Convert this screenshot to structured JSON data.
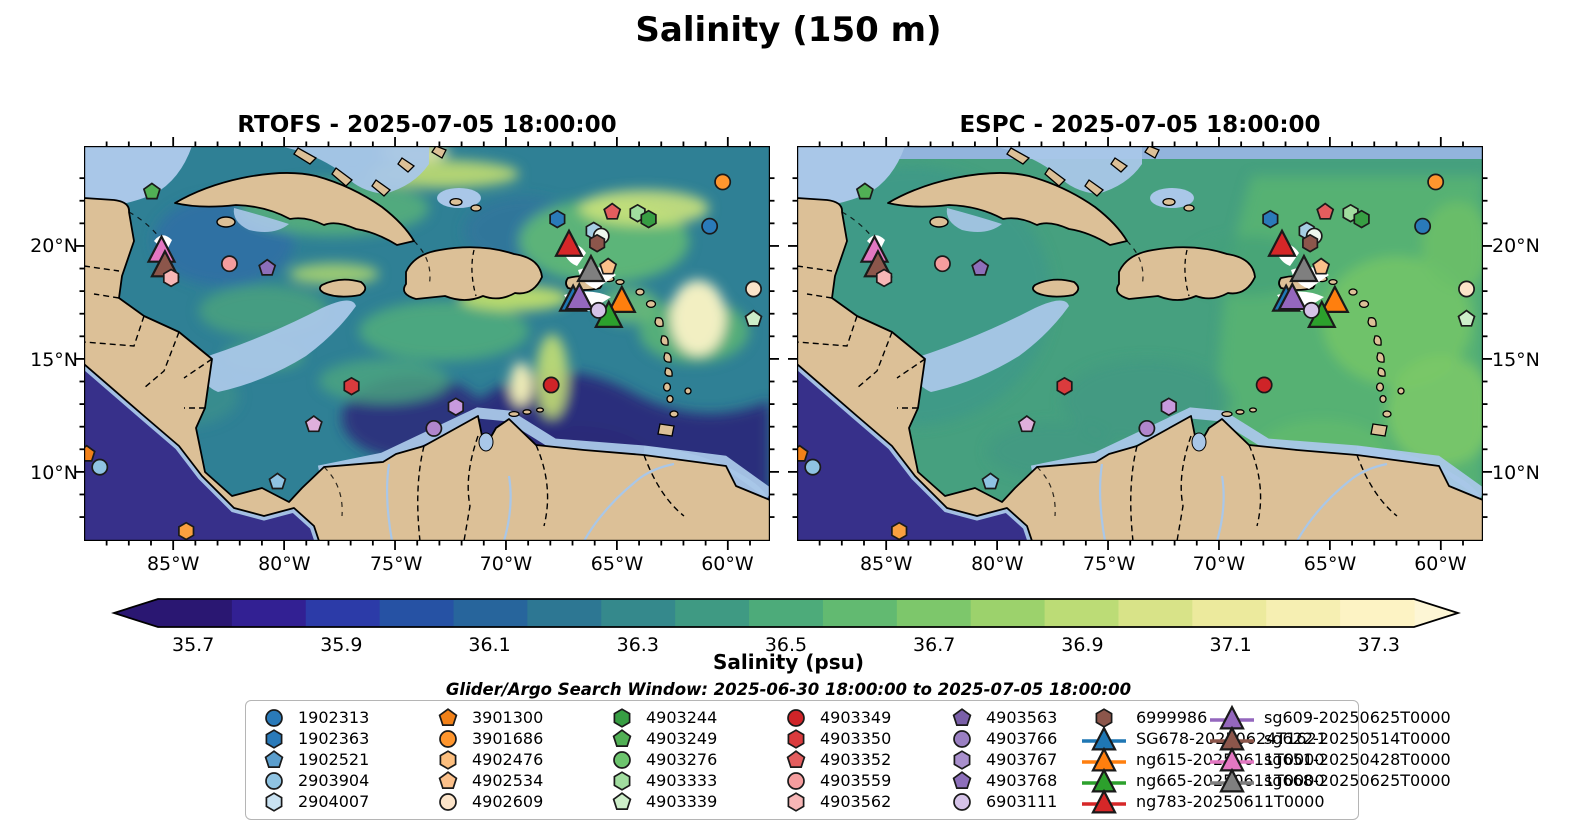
{
  "title": "Salinity (150 m)",
  "subtitle": "Glider/Argo Search Window: 2025-06-30 18:00:00 to 2025-07-05 18:00:00",
  "panels": [
    {
      "model": "RTOFS",
      "title": "RTOFS - 2025-07-05 18:00:00"
    },
    {
      "model": "ESPC",
      "title": "ESPC - 2025-07-05 18:00:00"
    }
  ],
  "axes": {
    "lon_ticks": [
      "85°W",
      "80°W",
      "75°W",
      "70°W",
      "65°W",
      "60°W"
    ],
    "lat_ticks": [
      "20°N",
      "15°N",
      "10°N"
    ]
  },
  "colorbar": {
    "label": "Salinity (psu)",
    "ticks": [
      "35.7",
      "35.9",
      "36.1",
      "36.3",
      "36.5",
      "36.7",
      "36.9",
      "37.1",
      "37.3"
    ],
    "segment_colors": [
      "#2a1772",
      "#322093",
      "#2c3ba8",
      "#2652a4",
      "#27659c",
      "#2d7793",
      "#35898c",
      "#3f9a83",
      "#4dab7a",
      "#62ba71",
      "#7dc76b",
      "#9cd26c",
      "#bcdc76",
      "#d8e388",
      "#ecea9d",
      "#f6efb2",
      "#fdf3c4"
    ],
    "under_color": "#2a1772",
    "over_color": "#fdf6d5"
  },
  "legend": {
    "argo_columns": [
      [
        {
          "id": "1902313",
          "shape": "circle",
          "color": "#2a7ab9"
        },
        {
          "id": "1902363",
          "shape": "hexagon",
          "color": "#2a7ab9"
        },
        {
          "id": "1902521",
          "shape": "pentagon",
          "color": "#5b9ecd"
        },
        {
          "id": "2903904",
          "shape": "circle",
          "color": "#8fc3e2"
        },
        {
          "id": "2904007",
          "shape": "hexagon",
          "color": "#c9e2f2"
        }
      ],
      [
        {
          "id": "3901300",
          "shape": "pentagon",
          "color": "#f28118"
        },
        {
          "id": "3901686",
          "shape": "circle",
          "color": "#ff962e"
        },
        {
          "id": "4902476",
          "shape": "hexagon",
          "color": "#fcbe7e"
        },
        {
          "id": "4902534",
          "shape": "pentagon",
          "color": "#fbc08a"
        },
        {
          "id": "4902609",
          "shape": "circle",
          "color": "#fce4c9"
        }
      ],
      [
        {
          "id": "4903244",
          "shape": "hexagon",
          "color": "#379e43"
        },
        {
          "id": "4903249",
          "shape": "pentagon",
          "color": "#51b055"
        },
        {
          "id": "4903276",
          "shape": "circle",
          "color": "#6cc46d"
        },
        {
          "id": "4903333",
          "shape": "hexagon",
          "color": "#a1dd9f"
        },
        {
          "id": "4903339",
          "shape": "pentagon",
          "color": "#cdeec9"
        }
      ],
      [
        {
          "id": "4903349",
          "shape": "circle",
          "color": "#cf2428"
        },
        {
          "id": "4903350",
          "shape": "hexagon",
          "color": "#da3b3d"
        },
        {
          "id": "4903352",
          "shape": "pentagon",
          "color": "#e35d5e"
        },
        {
          "id": "4903559",
          "shape": "circle",
          "color": "#f59d9e"
        },
        {
          "id": "4903562",
          "shape": "hexagon",
          "color": "#f7b6b6"
        }
      ],
      [
        {
          "id": "4903563",
          "shape": "pentagon",
          "color": "#7a5fa8"
        },
        {
          "id": "4903766",
          "shape": "circle",
          "color": "#9a7fc2"
        },
        {
          "id": "4903767",
          "shape": "hexagon",
          "color": "#a98fcd"
        },
        {
          "id": "4903768",
          "shape": "pentagon",
          "color": "#8d6fba"
        },
        {
          "id": "6903111",
          "shape": "circle",
          "color": "#d5c3e8"
        }
      ]
    ],
    "col6": [
      {
        "id": "6999986",
        "type": "argo",
        "shape": "hexagon",
        "color": "#8c564b"
      },
      {
        "id": "SG678-20250624T1621",
        "type": "glider",
        "color": "#1f77b4"
      },
      {
        "id": "ng615-20250611T0000",
        "type": "glider",
        "color": "#ff7f0e"
      },
      {
        "id": "ng665-20250611T0000",
        "type": "glider",
        "color": "#2ca02c"
      },
      {
        "id": "ng783-20250611T0000",
        "type": "glider",
        "color": "#d62728"
      }
    ],
    "col7": [
      {
        "id": "sg609-20250625T0000",
        "type": "glider",
        "color": "#9467bd"
      },
      {
        "id": "sg622-20250514T0000",
        "type": "glider",
        "color": "#8c564b"
      },
      {
        "id": "sg651-20250428T0000",
        "type": "glider",
        "color": "#e377c2"
      },
      {
        "id": "sg668-20250625T0000",
        "type": "glider",
        "color": "#7f7f7f"
      }
    ]
  },
  "map_markers": [
    {
      "name": "argo-4903249",
      "shape": "pentagon",
      "color": "#51b055",
      "x": 9.9,
      "y": 11.6
    },
    {
      "name": "glider-sg651",
      "shape": "triangle",
      "color": "#e377c2",
      "x": 11.3,
      "y": 26.5
    },
    {
      "name": "glider-sg622",
      "shape": "triangle",
      "color": "#8c564b",
      "x": 11.8,
      "y": 30.2
    },
    {
      "name": "argo-4903562",
      "shape": "hexagon",
      "color": "#f7b6b6",
      "x": 12.7,
      "y": 33.4
    },
    {
      "name": "argo-4903559",
      "shape": "circle",
      "color": "#f59d9e",
      "x": 21.2,
      "y": 29.8
    },
    {
      "name": "argo-4903563",
      "shape": "pentagon",
      "color": "#8d6fba",
      "x": 26.7,
      "y": 30.9
    },
    {
      "name": "argo-1902363",
      "shape": "hexagon",
      "color": "#2a7ab9",
      "x": 69.0,
      "y": 18.5
    },
    {
      "name": "argo-2903904-hex",
      "shape": "hexagon",
      "color": "#a6cee3",
      "x": 74.3,
      "y": 21.5
    },
    {
      "name": "argo-2904007",
      "shape": "circle",
      "color": "#eef7ee",
      "x": 75.4,
      "y": 22.8
    },
    {
      "name": "argo-6999986",
      "shape": "hexagon",
      "color": "#8c564b",
      "x": 74.8,
      "y": 24.6
    },
    {
      "name": "glider-ng783",
      "shape": "triangle",
      "color": "#d62728",
      "x": 70.7,
      "y": 25.0
    },
    {
      "name": "glider-sg668",
      "shape": "triangle",
      "color": "#7f7f7f",
      "x": 73.9,
      "y": 31.4
    },
    {
      "name": "argo-4902534",
      "shape": "pentagon",
      "color": "#fbc08a",
      "x": 76.4,
      "y": 30.6
    },
    {
      "name": "glider-sg678",
      "shape": "triangle",
      "color": "#1f77b4",
      "x": 71.3,
      "y": 38.9
    },
    {
      "name": "glider-sg609",
      "shape": "triangle",
      "color": "#9467bd",
      "x": 72.2,
      "y": 38.5
    },
    {
      "name": "glider-ng615",
      "shape": "triangle",
      "color": "#ff7f0e",
      "x": 78.4,
      "y": 39.2
    },
    {
      "name": "glider-ng665",
      "shape": "triangle",
      "color": "#2ca02c",
      "x": 76.5,
      "y": 43.0
    },
    {
      "name": "argo-6903111",
      "shape": "circle",
      "color": "#d5c3e8",
      "x": 75.0,
      "y": 41.6
    },
    {
      "name": "argo-4903352",
      "shape": "pentagon",
      "color": "#e35d5e",
      "x": 77.0,
      "y": 16.7
    },
    {
      "name": "argo-4903333",
      "shape": "hexagon",
      "color": "#a1dd9f",
      "x": 80.7,
      "y": 17.0
    },
    {
      "name": "argo-4903244",
      "shape": "hexagon",
      "color": "#379e43",
      "x": 82.3,
      "y": 18.5
    },
    {
      "name": "argo-3901686",
      "shape": "circle",
      "color": "#ff962e",
      "x": 93.1,
      "y": 9.1
    },
    {
      "name": "argo-1902313",
      "shape": "circle",
      "color": "#2a7ab9",
      "x": 91.2,
      "y": 20.3
    },
    {
      "name": "argo-4902609",
      "shape": "circle",
      "color": "#fce4c9",
      "x": 97.6,
      "y": 36.2
    },
    {
      "name": "argo-4903339",
      "shape": "pentagon",
      "color": "#cdeec9",
      "x": 97.6,
      "y": 43.8
    },
    {
      "name": "argo-4903349",
      "shape": "circle",
      "color": "#cf2428",
      "x": 68.1,
      "y": 60.5
    },
    {
      "name": "argo-4903350",
      "shape": "hexagon",
      "color": "#da3b3d",
      "x": 39.0,
      "y": 60.8
    },
    {
      "name": "argo-4903768",
      "shape": "pentagon",
      "color": "#dfb0dc",
      "x": 33.5,
      "y": 70.5
    },
    {
      "name": "argo-4903767",
      "shape": "hexagon",
      "color": "#c79ade",
      "x": 54.2,
      "y": 66.0
    },
    {
      "name": "argo-4903766",
      "shape": "circle",
      "color": "#b186cc",
      "x": 51.0,
      "y": 71.5
    },
    {
      "name": "argo-1902521",
      "shape": "pentagon",
      "color": "#8fc3e2",
      "x": 28.2,
      "y": 85.0
    },
    {
      "name": "argo-3901300",
      "shape": "pentagon",
      "color": "#f28118",
      "x": 0.4,
      "y": 78.0
    },
    {
      "name": "argo-2903904",
      "shape": "circle",
      "color": "#8fc3e2",
      "x": 2.3,
      "y": 81.3
    },
    {
      "name": "argo-4902476",
      "shape": "hexagon",
      "color": "#f9a03f",
      "x": 14.9,
      "y": 97.5
    }
  ],
  "chart_data": {
    "type": "heatmap",
    "title": "Salinity (150 m)",
    "panels": [
      {
        "model": "RTOFS",
        "timestamp": "2025-07-05 18:00:00",
        "style": "turbulent eddy field, dark low-salinity eastern basin"
      },
      {
        "model": "ESPC",
        "timestamp": "2025-07-05 18:00:00",
        "style": "smooth mid-range salinity field, no-data band at northern edge"
      }
    ],
    "variable": "Salinity (psu)",
    "depth_m": 150,
    "colorbar_tick_values": [
      35.7,
      35.9,
      36.1,
      36.3,
      36.5,
      36.7,
      36.9,
      37.1,
      37.3
    ],
    "colorbar_range": [
      35.65,
      37.35
    ],
    "x_axis_ticks": [
      "85°W",
      "80°W",
      "75°W",
      "70°W",
      "65°W",
      "60°W"
    ],
    "y_axis_ticks": [
      "20°N",
      "15°N",
      "10°N"
    ],
    "search_window": "2025-06-30 18:00:00 to 2025-07-05 18:00:00",
    "argo_floats": [
      "1902313",
      "1902363",
      "1902521",
      "2903904",
      "2904007",
      "3901300",
      "3901686",
      "4902476",
      "4902534",
      "4902609",
      "4903244",
      "4903249",
      "4903276",
      "4903333",
      "4903339",
      "4903349",
      "4903350",
      "4903352",
      "4903559",
      "4903562",
      "4903563",
      "4903766",
      "4903767",
      "4903768",
      "6903111",
      "6999986"
    ],
    "gliders": [
      "SG678-20250624T1621",
      "ng615-20250611T0000",
      "ng665-20250611T0000",
      "ng783-20250611T0000",
      "sg609-20250625T0000",
      "sg622-20250514T0000",
      "sg651-20250428T0000",
      "sg668-20250625T0000"
    ]
  }
}
